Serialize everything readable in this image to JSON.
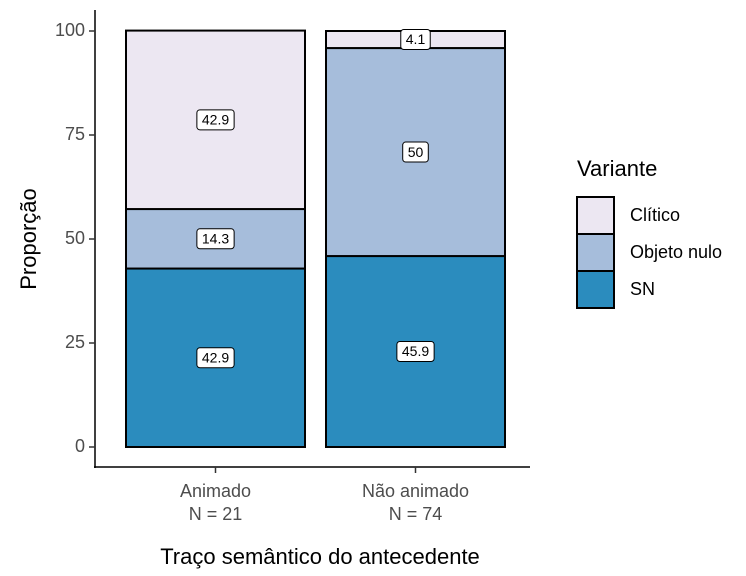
{
  "chart_data": {
    "type": "stacked_bar",
    "categories": [
      "Animado\nN = 21",
      "Não animado\nN = 74"
    ],
    "series": [
      {
        "name": "SN",
        "color": "#2b8cbe",
        "values": [
          42.9,
          45.9
        ]
      },
      {
        "name": "Objeto nulo",
        "color": "#a6bddb",
        "values": [
          14.3,
          50
        ]
      },
      {
        "name": "Clítico",
        "color": "#ece7f2",
        "values": [
          42.9,
          4.1
        ]
      }
    ],
    "ylim": [
      0,
      100
    ],
    "yticks": [
      0,
      25,
      50,
      75,
      100
    ],
    "x_label": "Traço semântico do antecedente",
    "y_label": "Proporção",
    "legend_title": "Variante",
    "legend_position": "right"
  }
}
